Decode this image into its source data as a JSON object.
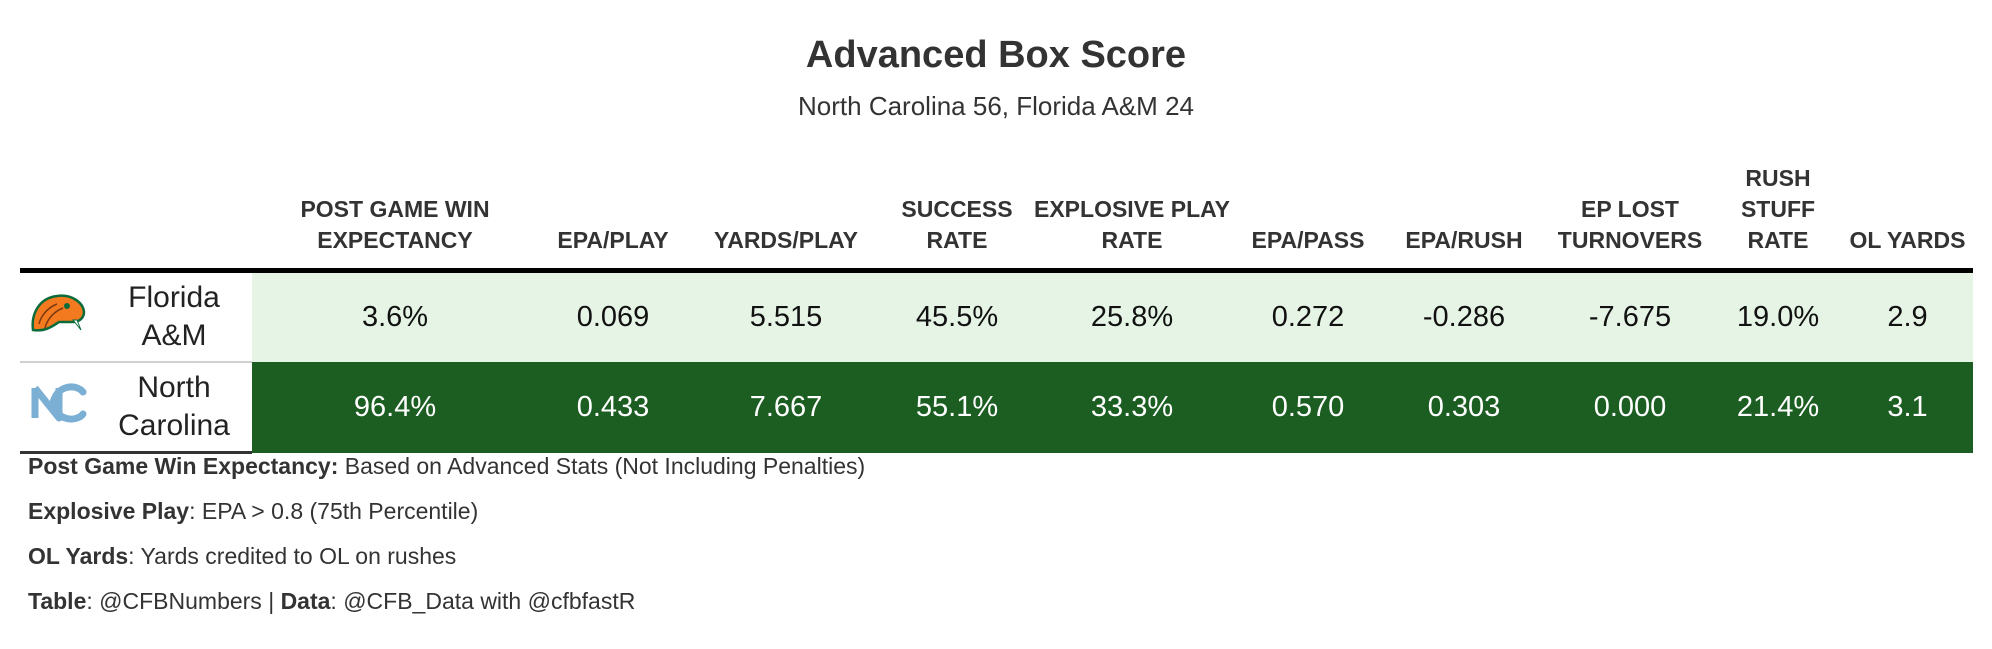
{
  "title": "Advanced Box Score",
  "subtitle": "North Carolina 56, Florida A&M 24",
  "chart_data": {
    "type": "table",
    "columns": [
      "POST GAME WIN EXPECTANCY",
      "EPA/PLAY",
      "YARDS/PLAY",
      "SUCCESS RATE",
      "EXPLOSIVE PLAY RATE",
      "EPA/PASS",
      "EPA/RUSH",
      "EP LOST TURNOVERS",
      "RUSH STUFF RATE",
      "OL YARDS"
    ],
    "rows": [
      {
        "team": "Florida A&M",
        "logo_icon": "rattler-logo-icon",
        "values": [
          "3.6%",
          "0.069",
          "5.515",
          "45.5%",
          "25.8%",
          "0.272",
          "-0.286",
          "-7.675",
          "19.0%",
          "2.9"
        ]
      },
      {
        "team": "North Carolina",
        "logo_icon": "unc-interlocking-nc-logo-icon",
        "values": [
          "96.4%",
          "0.433",
          "7.667",
          "55.1%",
          "33.3%",
          "0.570",
          "0.303",
          "0.000",
          "21.4%",
          "3.1"
        ]
      }
    ]
  },
  "colors": {
    "low_row_fill": "#e6f4e6",
    "high_row_fill": "#1c5e22",
    "unc_blue": "#7bafd4",
    "fam_orange": "#f47a20",
    "fam_green": "#0b6b3a"
  },
  "footnotes": {
    "wp_label": "Post Game Win Expectancy:",
    "wp_text": " Based on Advanced Stats (Not Including Penalties)",
    "explosive_label": "Explosive Play",
    "explosive_text": ": EPA > 0.8 (75th Percentile)",
    "ol_label": "OL Yards",
    "ol_text": ": Yards credited to OL on rushes",
    "table_label": "Table",
    "table_text": ": @CFBNumbers | ",
    "data_label": "Data",
    "data_text": ": @CFB_Data with @cfbfastR"
  }
}
